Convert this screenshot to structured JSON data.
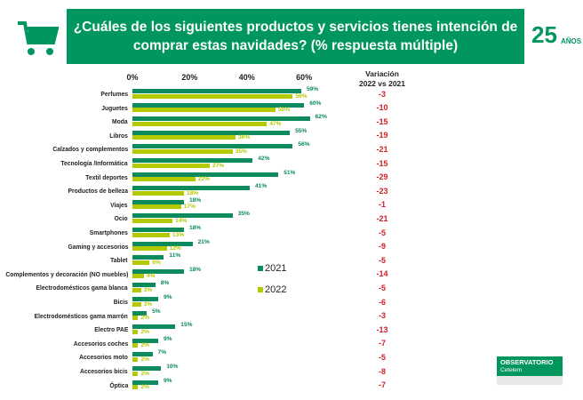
{
  "header": {
    "title": "¿Cuáles de los siguientes productos y servicios tienes intención de comprar estas navidades? (% respuesta múltiple)"
  },
  "logo_25": {
    "number": "25",
    "text": "AÑOS"
  },
  "brand": {
    "line1": "OBSERVATORIO",
    "line2": "Cetelem"
  },
  "colors": {
    "s2021": "#0b8a5b",
    "s2022": "#b5c900",
    "variation": "#d0202a",
    "header": "#00965e"
  },
  "chart_data": {
    "type": "bar",
    "orientation": "horizontal",
    "title": "¿Cuáles de los siguientes productos y servicios tienes intención de comprar estas navidades? (% respuesta múltiple)",
    "xlim": [
      0,
      65
    ],
    "ticks": [
      "0%",
      "20%",
      "40%",
      "60%"
    ],
    "tick_values": [
      0,
      20,
      40,
      60
    ],
    "legend": [
      "2021",
      "2022"
    ],
    "legend_position": "right-middle",
    "variation_header": [
      "Variación",
      "2022 vs 2021"
    ],
    "categories": [
      "Perfumes",
      "Juguetes",
      "Moda",
      "Libros",
      "Calzados y complementos",
      "Tecnología /Informática",
      "Textil deportes",
      "Productos de belleza",
      "Viajes",
      "Ocio",
      "Smartphones",
      "Gaming y accesorios",
      "Tablet",
      "Complementos y decoración (NO muebles)",
      "Electrodomésticos gama blanca",
      "Bicis",
      "Electrodomésticos gama marrón",
      "Electro PAE",
      "Accesorios coches",
      "Accesorios moto",
      "Accesorios bicis",
      "Óptica"
    ],
    "series": [
      {
        "name": "2021",
        "values": [
          59,
          60,
          62,
          55,
          56,
          42,
          51,
          41,
          18,
          35,
          18,
          21,
          11,
          18,
          8,
          9,
          5,
          15,
          9,
          7,
          10,
          9
        ]
      },
      {
        "name": "2022",
        "values": [
          56,
          50,
          47,
          36,
          35,
          27,
          22,
          18,
          17,
          14,
          13,
          12,
          6,
          4,
          3,
          3,
          2,
          2,
          2,
          2,
          2,
          2
        ]
      }
    ],
    "variation": [
      "-3",
      "-10",
      "-15",
      "-19",
      "-21",
      "-15",
      "-29",
      "-23",
      "-1",
      "-21",
      "-5",
      "-9",
      "-5",
      "-14",
      "-5",
      "-6",
      "-3",
      "-13",
      "-7",
      "-5",
      "-8",
      "-7"
    ]
  }
}
